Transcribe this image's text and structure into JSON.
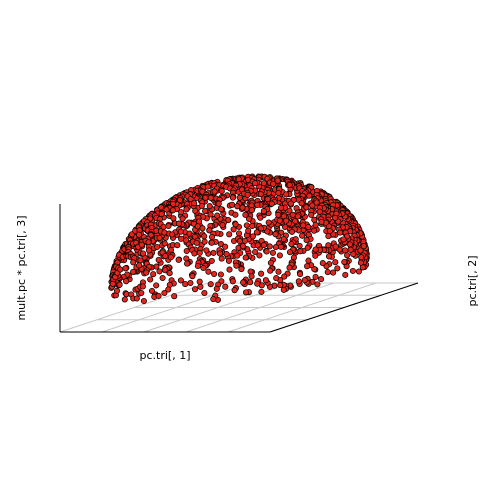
{
  "chart_data": {
    "type": "scatter",
    "subtype": "3d-scatter",
    "title": "",
    "xlabel": "pc.tri[, 1]",
    "ylabel": "pc.tri[, 2]",
    "zlabel": "mult.pc * pc.tri[, 3]",
    "grid": true,
    "grid_plane": "bottom",
    "angle_deg": 15,
    "point_count": 1400,
    "shape": "upper hemisphere of radius 1",
    "xlim": [
      -1,
      1
    ],
    "ylim": [
      -1,
      1
    ],
    "zlim": [
      -0.3,
      1
    ],
    "point_fill": "#e3261d",
    "point_stroke": "#000000",
    "grid_color": "#c8c8c8"
  }
}
